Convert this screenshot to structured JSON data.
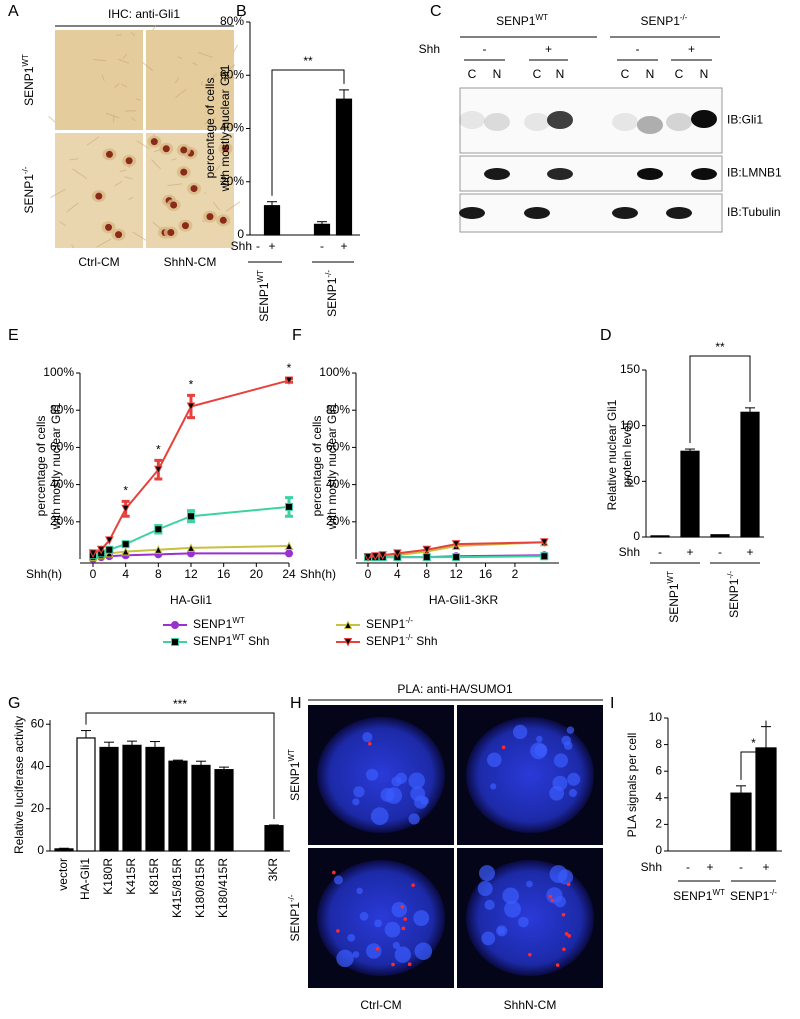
{
  "panels": {
    "A": {
      "letter": "A",
      "title": "IHC: anti-Gli1",
      "rows": [
        {
          "base": "SENP1",
          "sup": "WT"
        },
        {
          "base": "SENP1",
          "sup": "-/-"
        }
      ],
      "columns": [
        "Ctrl-CM",
        "ShhN-CM"
      ]
    },
    "C": {
      "letter": "C",
      "groups": [
        {
          "base": "SENP1",
          "sup": "WT"
        },
        {
          "base": "SENP1",
          "sup": "-/-"
        }
      ],
      "shh": "Shh",
      "signs": [
        "-",
        "+",
        "-",
        "+"
      ],
      "fractions": [
        "C",
        "N",
        "C",
        "N",
        "C",
        "N",
        "C",
        "N"
      ],
      "blots": [
        "IB:Gli1",
        "IB:LMNB1",
        "IB:Tubulin"
      ]
    },
    "H": {
      "letter": "H",
      "title": "PLA: anti-HA/SUMO1",
      "rows": [
        {
          "base": "SENP1",
          "sup": "WT"
        },
        {
          "base": "SENP1",
          "sup": "-/-"
        }
      ],
      "columns": [
        "Ctrl-CM",
        "ShhN-CM"
      ]
    }
  },
  "chart_data": [
    {
      "panel": "B",
      "type": "bar",
      "y_label": [
        "percentage of cells",
        "with mostly nuclear Gli1"
      ],
      "ylim": [
        0,
        80
      ],
      "yticks": [
        0,
        {
          "value": 20,
          "label": "20%"
        },
        {
          "value": 40,
          "label": "40%"
        },
        {
          "value": 60,
          "label": "60%"
        },
        {
          "value": 80,
          "label": "80%"
        }
      ],
      "x_prefix": "Shh",
      "categories": [
        "-",
        "+",
        "-",
        "+"
      ],
      "groups": [
        {
          "base": "SENP1",
          "sup": "WT"
        },
        {
          "base": "SENP1",
          "sup": "-/-"
        }
      ],
      "values": [
        0,
        11,
        4,
        51
      ],
      "errors": [
        0,
        1.5,
        1,
        3.5
      ],
      "color": "#000000",
      "significance": "**"
    },
    {
      "panel": "D",
      "type": "bar",
      "y_label": [
        "Relative nuclear Gli1",
        "protein level"
      ],
      "ylim": [
        0,
        150
      ],
      "yticks": [
        0,
        50,
        100,
        150
      ],
      "x_prefix": "Shh",
      "categories": [
        "-",
        "+",
        "-",
        "+"
      ],
      "groups": [
        {
          "base": "SENP1",
          "sup": "WT"
        },
        {
          "base": "SENP1",
          "sup": "-/-"
        }
      ],
      "values": [
        1,
        77,
        2,
        112
      ],
      "errors": [
        0,
        2,
        0,
        4
      ],
      "color": "#000000",
      "significance": "**"
    },
    {
      "panel": "E",
      "type": "line",
      "y_label": [
        "percentage of cells",
        "with mostly nuclear Gli1"
      ],
      "x_prefix": "Shh(h)",
      "x_label": "HA-Gli1",
      "x": [
        0,
        1,
        2,
        4,
        8,
        12,
        24
      ],
      "xlim": [
        0,
        24
      ],
      "xticks": [
        0,
        4,
        8,
        12,
        16,
        20,
        24
      ],
      "ylim": [
        0,
        100
      ],
      "yticks": [
        {
          "value": 20,
          "label": "20%"
        },
        {
          "value": 40,
          "label": "40%"
        },
        {
          "value": 60,
          "label": "60%"
        },
        {
          "value": 80,
          "label": "80%"
        },
        {
          "value": 100,
          "label": "100%"
        }
      ],
      "legend": true,
      "annotations": [
        "*",
        "*",
        "*",
        "*"
      ],
      "series": [
        {
          "name": {
            "base": "SENP1",
            "sup": "WT"
          },
          "color": "#9b30d0",
          "marker": "circle",
          "values": [
            0,
            1,
            1.5,
            2,
            2.5,
            3,
            3
          ],
          "errors": [
            0,
            0,
            0,
            0,
            0,
            0,
            0
          ]
        },
        {
          "name": {
            "base": "SENP1",
            "sup": "-/-"
          },
          "color": "#c8c040",
          "marker": "triangle-up",
          "values": [
            1,
            2,
            3,
            4,
            5,
            6,
            7
          ],
          "errors": [
            0,
            0,
            0,
            0,
            0,
            0,
            0
          ]
        },
        {
          "name": {
            "base": "SENP1",
            "sup": "WT",
            "after": " Shh"
          },
          "color": "#3cd2a4",
          "marker": "square",
          "values": [
            2,
            3,
            5,
            8,
            16,
            23,
            28
          ],
          "errors": [
            0,
            0,
            0,
            0,
            2,
            3,
            5
          ]
        },
        {
          "name": {
            "base": "SENP1",
            "sup": "-/-",
            "after": " Shh"
          },
          "color": "#e8413c",
          "marker": "triangle-down",
          "values": [
            3,
            5,
            10,
            27,
            48,
            82,
            96
          ],
          "errors": [
            0,
            0,
            0,
            4,
            5,
            6,
            1
          ]
        }
      ]
    },
    {
      "panel": "F",
      "type": "line",
      "y_label": [
        "percentage of cells",
        "with mostly nuclear Gli1"
      ],
      "x_prefix": "Shh(h)",
      "x_label": "HA-Gli1-3KR",
      "x": [
        0,
        1,
        2,
        4,
        8,
        12,
        24
      ],
      "xlim": [
        0,
        26
      ],
      "xticks": [
        0,
        4,
        8,
        12,
        16,
        {
          "value": 20,
          "label": "2"
        }
      ],
      "ylim": [
        0,
        100
      ],
      "yticks": [
        {
          "value": 20,
          "label": "20%"
        },
        {
          "value": 40,
          "label": "40%"
        },
        {
          "value": 60,
          "label": "60%"
        },
        {
          "value": 80,
          "label": "80%"
        },
        {
          "value": 100,
          "label": "100%"
        }
      ],
      "legend": false,
      "series": [
        {
          "color": "#9b30d0",
          "marker": "circle",
          "values": [
            1,
            1,
            1,
            1,
            1,
            1.5,
            2
          ],
          "errors": [
            0,
            0,
            0,
            0,
            0,
            0,
            0
          ]
        },
        {
          "color": "#c8c040",
          "marker": "triangle-up",
          "values": [
            1,
            1,
            1.5,
            2,
            4,
            7,
            9
          ],
          "errors": [
            0,
            0,
            0,
            0,
            0,
            0,
            0
          ]
        },
        {
          "color": "#3cd2a4",
          "marker": "square",
          "values": [
            1,
            1,
            1,
            1,
            1,
            1,
            1.5
          ],
          "errors": [
            0,
            0,
            0,
            0,
            0,
            0,
            0
          ]
        },
        {
          "color": "#e8413c",
          "marker": "triangle-down",
          "values": [
            1,
            1.5,
            2,
            3,
            5,
            8,
            9
          ],
          "errors": [
            0,
            0,
            0,
            0,
            0,
            0,
            0
          ]
        }
      ]
    },
    {
      "panel": "G",
      "type": "bar",
      "y_label": [
        "Relative luciferase activity"
      ],
      "ylim": [
        0,
        62
      ],
      "yticks": [
        0,
        20,
        40,
        60
      ],
      "categories": [
        "vector",
        "HA-Gli1",
        "K180R",
        "K415R",
        "K815R",
        "K415/815R",
        "K180/815R",
        "K180/415R",
        "3KR"
      ],
      "values": [
        1,
        53.5,
        49,
        50,
        49,
        42.5,
        40.5,
        38.5,
        12
      ],
      "errors": [
        0.3,
        3.5,
        2.5,
        2,
        2.8,
        0.5,
        2,
        1.2,
        0.3
      ],
      "colors": [
        "#000000",
        "#ffffff",
        "#000000",
        "#000000",
        "#000000",
        "#000000",
        "#000000",
        "#000000",
        "#000000"
      ],
      "significance": "***"
    },
    {
      "panel": "I",
      "type": "bar",
      "y_label": [
        "PLA signals per cell"
      ],
      "ylim": [
        0,
        10
      ],
      "yticks": [
        0,
        2,
        4,
        6,
        8,
        10
      ],
      "x_prefix": "Shh",
      "categories": [
        "-",
        "+",
        "-",
        "+"
      ],
      "groups": [
        {
          "base": "SENP1",
          "sup": "WT"
        },
        {
          "base": "SENP1",
          "sup": "-/-"
        }
      ],
      "values": [
        0,
        0,
        4.35,
        7.75
      ],
      "errors": [
        0,
        0,
        0.55,
        1.6
      ],
      "color": "#000000",
      "significance": "*"
    }
  ]
}
